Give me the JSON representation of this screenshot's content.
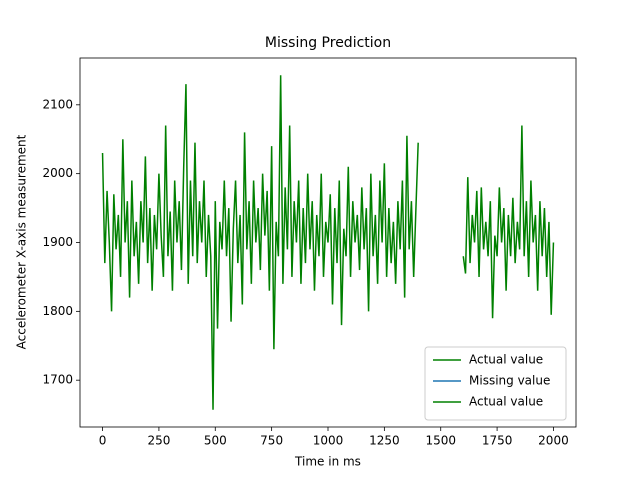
{
  "chart_data": {
    "type": "line",
    "title": "Missing Prediction",
    "x_label": "Time in ms",
    "y_label": "Accelerometer X-axis measurement",
    "xlim": [
      -100,
      2100
    ],
    "xticks": [
      0,
      250,
      500,
      750,
      1000,
      1250,
      1500,
      1750,
      2000
    ],
    "ylim": [
      1632,
      2168
    ],
    "yticks": [
      1700,
      1800,
      1900,
      2000,
      2100
    ],
    "legend": "lower right",
    "series": [
      {
        "name": "Actual value",
        "color": "#008000",
        "x": [
          0,
          10,
          20,
          30,
          40,
          50,
          60,
          70,
          80,
          90,
          100,
          110,
          120,
          130,
          140,
          150,
          160,
          170,
          180,
          190,
          200,
          210,
          220,
          230,
          240,
          250,
          260,
          270,
          280,
          290,
          300,
          310,
          320,
          330,
          340,
          350,
          360,
          370,
          380,
          390,
          400,
          410,
          420,
          430,
          440,
          450,
          460,
          470,
          480,
          490,
          500,
          510,
          520,
          530,
          540,
          550,
          560,
          570,
          580,
          590,
          600,
          610,
          620,
          630,
          640,
          650,
          660,
          670,
          680,
          690,
          700,
          710,
          720,
          730,
          740,
          750,
          760,
          770,
          780,
          790,
          800,
          810,
          820,
          830,
          840,
          850,
          860,
          870,
          880,
          890,
          900,
          910,
          920,
          930,
          940,
          950,
          960,
          970,
          980,
          990,
          1000,
          1010,
          1020,
          1030,
          1040,
          1050,
          1060,
          1070,
          1080,
          1090,
          1100,
          1110,
          1120,
          1130,
          1140,
          1150,
          1160,
          1170,
          1180,
          1190,
          1200,
          1210,
          1220,
          1230,
          1240,
          1250,
          1260,
          1270,
          1280,
          1290,
          1300,
          1310,
          1320,
          1330,
          1340,
          1350,
          1360,
          1370,
          1380,
          1390,
          1400
        ],
        "values": [
          2030,
          1870,
          1975,
          1900,
          1800,
          1970,
          1890,
          1940,
          1850,
          2050,
          1900,
          1960,
          1820,
          1990,
          1880,
          1930,
          1840,
          1960,
          1900,
          2025,
          1870,
          1950,
          1830,
          1940,
          1890,
          2000,
          1910,
          1850,
          2070,
          1880,
          1945,
          1830,
          1990,
          1900,
          1960,
          1860,
          2010,
          2130,
          1840,
          1990,
          1880,
          2045,
          1870,
          1960,
          1900,
          1990,
          1850,
          1940,
          1880,
          1657,
          1960,
          1775,
          1930,
          1890,
          1990,
          1880,
          1950,
          1785,
          1920,
          1990,
          1870,
          1940,
          1810,
          2060,
          1890,
          1960,
          1840,
          1990,
          1900,
          1950,
          1860,
          2000,
          1910,
          1975,
          1830,
          2040,
          1745,
          1930,
          1880,
          2143,
          1840,
          1980,
          1890,
          2070,
          1850,
          1960,
          1900,
          1990,
          1840,
          1950,
          1870,
          2000,
          1890,
          1960,
          1830,
          1940,
          1880,
          2000,
          1850,
          1930,
          1900,
          1970,
          1810,
          1950,
          1870,
          1990,
          1780,
          1920,
          1880,
          2010,
          1850,
          1960,
          1900,
          1940,
          1860,
          1980,
          1890,
          1950,
          1800,
          2000,
          1880,
          1940,
          1840,
          1990,
          1900,
          2015,
          1850,
          1950,
          1870,
          1930,
          1840,
          1960,
          1890,
          1990,
          1820,
          2055,
          1890,
          1960,
          1850,
          1950,
          2045
        ]
      },
      {
        "name": "Missing value",
        "color": "#1f77b4",
        "x": [],
        "values": []
      },
      {
        "name": "Actual value",
        "color": "#008000",
        "x": [
          1600,
          1610,
          1620,
          1630,
          1640,
          1650,
          1660,
          1670,
          1680,
          1690,
          1700,
          1710,
          1720,
          1730,
          1740,
          1750,
          1760,
          1770,
          1780,
          1790,
          1800,
          1810,
          1820,
          1830,
          1840,
          1850,
          1860,
          1870,
          1880,
          1890,
          1900,
          1910,
          1920,
          1930,
          1940,
          1950,
          1960,
          1970,
          1980,
          1990,
          2000
        ],
        "values": [
          1880,
          1855,
          1995,
          1870,
          1940,
          1900,
          1975,
          1850,
          1980,
          1890,
          1930,
          1880,
          1960,
          1790,
          1910,
          1880,
          1980,
          1900,
          1950,
          1830,
          1940,
          1880,
          1965,
          1870,
          1930,
          1890,
          2070,
          1880,
          1960,
          1850,
          1990,
          1900,
          1940,
          1830,
          1960,
          1880,
          1950,
          1850,
          1930,
          1795,
          1900
        ]
      }
    ]
  }
}
